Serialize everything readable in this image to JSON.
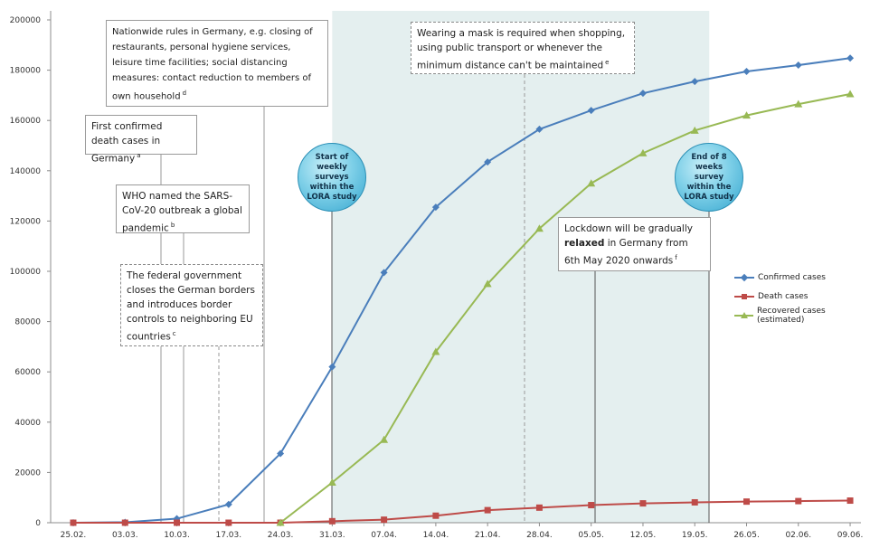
{
  "chart_data": {
    "type": "line",
    "categories": [
      "25.02.",
      "03.03.",
      "10.03.",
      "17.03.",
      "24.03.",
      "31.03.",
      "07.04.",
      "14.04.",
      "21.04.",
      "28.04.",
      "05.05.",
      "12.05.",
      "19.05.",
      "26.05.",
      "02.06.",
      "09.06."
    ],
    "yticks": [
      "0",
      "20000",
      "40000",
      "60000",
      "80000",
      "100000",
      "120000",
      "140000",
      "160000",
      "180000",
      "200000"
    ],
    "ylim": [
      0,
      200000
    ],
    "series": [
      {
        "name": "Confirmed cases",
        "color": "#4a7ebb",
        "marker": "diamond",
        "values": [
          20,
          200,
          1600,
          7300,
          27500,
          62000,
          99500,
          125500,
          143500,
          156500,
          164000,
          170800,
          175500,
          179500,
          182000,
          184800
        ]
      },
      {
        "name": "Death cases",
        "color": "#be4b48",
        "marker": "square",
        "values": [
          0,
          0,
          0,
          0,
          0,
          600,
          1200,
          2800,
          5000,
          6000,
          7000,
          7700,
          8100,
          8400,
          8600,
          8800
        ]
      },
      {
        "name": "Recovered cases (estimated)",
        "color": "#98b954",
        "marker": "triangle",
        "values": [
          null,
          null,
          null,
          null,
          0,
          16000,
          33000,
          68000,
          95000,
          117000,
          135000,
          147000,
          156000,
          162000,
          166500,
          170500
        ]
      }
    ],
    "legend_position": "right",
    "shaded_region": {
      "from": "31.03.",
      "to": "19.05."
    },
    "events": {
      "first_death": "First confirmed death cases in Germany",
      "who": "WHO named the SARS-CoV-20 outbreak a global pandemic",
      "borders": "The federal government closes the German borders and introduces border controls to neighboring EU countries",
      "rules": "Nationwide rules in Germany, e.g. closing of restaurants, personal hygiene services, leisure time facilities; social distancing measures: contact reduction to members of own household",
      "start_survey": "Start of weekly surveys within the LORA study",
      "mask": "Wearing a mask is required when shopping, using public transport or whenever the minimum distance can't be maintained",
      "end_survey": "End of 8 weeks survey within the LORA study",
      "lockdown": "Lockdown will be gradually relaxed in Germany from 6th May 2020 onwards"
    }
  },
  "annotations": {
    "rules": {
      "text": "Nationwide rules in Germany, e.g. closing of restaurants, personal hygiene services, leisure time facilities; social distancing measures: contact reduction to members of own household",
      "note": "d"
    },
    "first_death": {
      "text": "First confirmed death cases in Germany",
      "note": "a"
    },
    "who": {
      "text": "WHO named the SARS-CoV-20 outbreak a global pandemic",
      "note": "b"
    },
    "borders": {
      "text": "The federal government closes the German borders and introduces border controls to neighboring EU countries",
      "note": "c"
    },
    "mask": {
      "text": "Wearing a mask is required when shopping, using public transport or whenever the minimum distance can't be maintained",
      "note": "e"
    },
    "lockdown": {
      "pre": "Lockdown will be gradually",
      "bold": "relaxed",
      "post": "in Germany from 6th May 2020 onwards",
      "note": "f"
    },
    "start_survey": "Start of weekly surveys within the LORA study",
    "end_survey": "End of 8 weeks survey within the LORA study"
  },
  "legend": {
    "confirmed": "Confirmed cases",
    "deaths": "Death cases",
    "recovered": "Recovered cases (estimated)"
  }
}
